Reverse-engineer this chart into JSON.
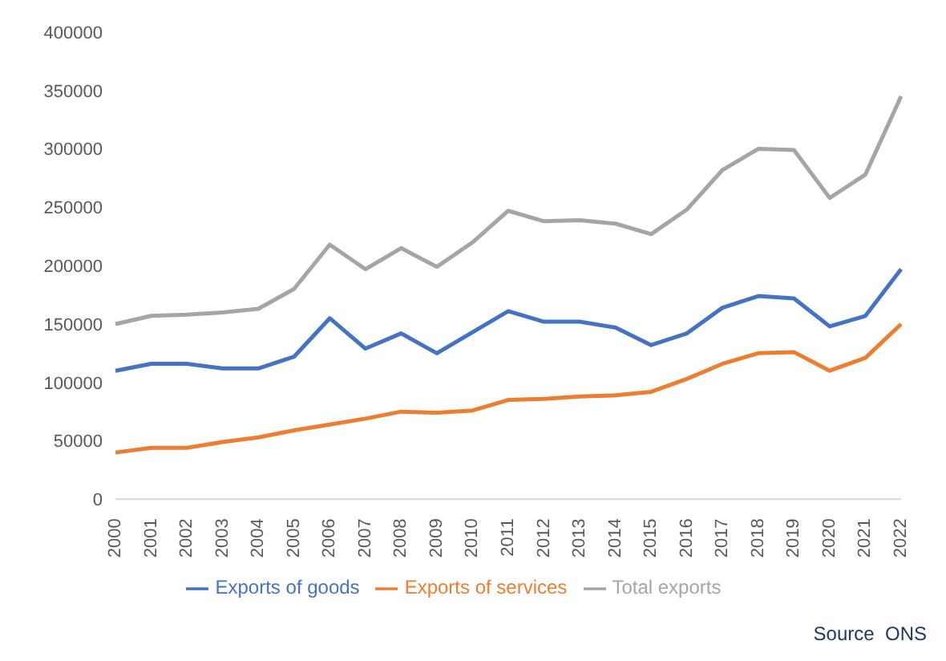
{
  "chart_data": {
    "type": "line",
    "categories": [
      "2000",
      "2001",
      "2002",
      "2003",
      "2004",
      "2005",
      "2006",
      "2007",
      "2008",
      "2009",
      "2010",
      "2011",
      "2012",
      "2013",
      "2014",
      "2015",
      "2016",
      "2017",
      "2018",
      "2019",
      "2020",
      "2021",
      "2022"
    ],
    "series": [
      {
        "name": "Exports of goods",
        "color": "#4472c4",
        "values": [
          110000,
          116000,
          116000,
          112000,
          112000,
          122000,
          155000,
          129000,
          142000,
          125000,
          143000,
          161000,
          152000,
          152000,
          147000,
          132000,
          142000,
          164000,
          174000,
          172000,
          148000,
          157000,
          197000
        ]
      },
      {
        "name": "Exports of services",
        "color": "#ed7d31",
        "values": [
          40000,
          44000,
          44000,
          49000,
          53000,
          59000,
          64000,
          69000,
          75000,
          74000,
          76000,
          85000,
          86000,
          88000,
          89000,
          92000,
          103000,
          116000,
          125000,
          126000,
          110000,
          121000,
          150000
        ]
      },
      {
        "name": "Total exports",
        "color": "#a5a5a5",
        "values": [
          150000,
          157000,
          158000,
          160000,
          163000,
          180000,
          218000,
          197000,
          215000,
          199000,
          220000,
          247000,
          238000,
          239000,
          236000,
          227000,
          248000,
          282000,
          300000,
          299000,
          258000,
          278000,
          345000
        ]
      }
    ],
    "ylim": [
      0,
      400000
    ],
    "yticks": [
      0,
      50000,
      100000,
      150000,
      200000,
      250000,
      300000,
      350000,
      400000
    ],
    "grid": false,
    "legend": "bottom",
    "marker": "none",
    "line_style": "solid",
    "annotations": [
      "Source  ONS"
    ]
  }
}
